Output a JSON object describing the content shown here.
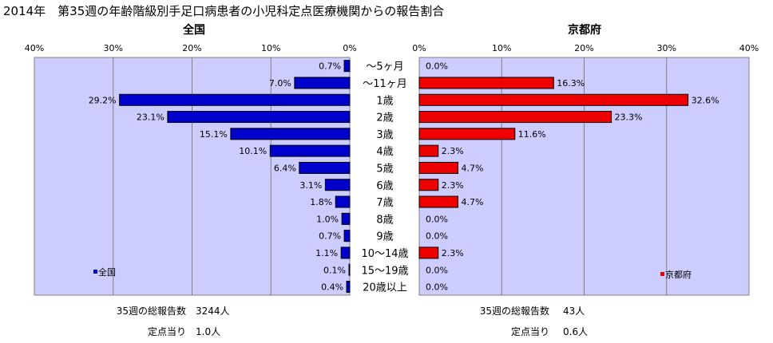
{
  "title": "2014年　第35週の年齢階級別手足口病患者の小児科定点医療機関からの報告割合",
  "chart_data": [
    {
      "type": "bar",
      "orientation": "horizontal",
      "direction": "leftward",
      "title": "全国",
      "legend": "全国",
      "legend_position": "bottom-left",
      "color": "#0000cc",
      "grid": true,
      "xlim": [
        0,
        40
      ],
      "x_ticks": [
        "40%",
        "30%",
        "20%",
        "10%",
        "0%"
      ],
      "categories": [
        "～5ヶ月",
        "～11ヶ月",
        "1歳",
        "2歳",
        "3歳",
        "4歳",
        "5歳",
        "6歳",
        "7歳",
        "8歳",
        "9歳",
        "10～14歳",
        "15～19歳",
        "20歳以上"
      ],
      "values": [
        0.7,
        7.0,
        29.2,
        23.1,
        15.1,
        10.1,
        6.4,
        3.1,
        1.8,
        1.0,
        0.7,
        1.1,
        0.1,
        0.4
      ],
      "value_labels": [
        "0.7%",
        "7.0%",
        "29.2%",
        "23.1%",
        "15.1%",
        "10.1%",
        "6.4%",
        "3.1%",
        "1.8%",
        "1.0%",
        "0.7%",
        "1.1%",
        "0.1%",
        "0.4%"
      ]
    },
    {
      "type": "bar",
      "orientation": "horizontal",
      "direction": "rightward",
      "title": "京都府",
      "legend": "京都府",
      "legend_position": "bottom-right",
      "color": "#ee0000",
      "grid": true,
      "xlim": [
        0,
        40
      ],
      "x_ticks": [
        "0%",
        "10%",
        "20%",
        "30%",
        "40%"
      ],
      "categories": [
        "～5ヶ月",
        "～11ヶ月",
        "1歳",
        "2歳",
        "3歳",
        "4歳",
        "5歳",
        "6歳",
        "7歳",
        "8歳",
        "9歳",
        "10～14歳",
        "15～19歳",
        "20歳以上"
      ],
      "values": [
        0.0,
        16.3,
        32.6,
        23.3,
        11.6,
        2.3,
        4.7,
        2.3,
        4.7,
        0.0,
        0.0,
        2.3,
        0.0,
        0.0
      ],
      "value_labels": [
        "0.0%",
        "16.3%",
        "32.6%",
        "23.3%",
        "11.6%",
        "2.3%",
        "4.7%",
        "2.3%",
        "4.7%",
        "0.0%",
        "0.0%",
        "2.3%",
        "0.0%",
        "0.0%"
      ]
    }
  ],
  "footer": {
    "national": {
      "reports_label": "35週の総報告数",
      "reports_value": "3244人",
      "per_site_label": "定点当り",
      "per_site_value": "1.0人"
    },
    "kyoto": {
      "reports_label": "35週の総報告数",
      "reports_value": "43人",
      "per_site_label": "定点当り",
      "per_site_value": "0.6人"
    }
  }
}
